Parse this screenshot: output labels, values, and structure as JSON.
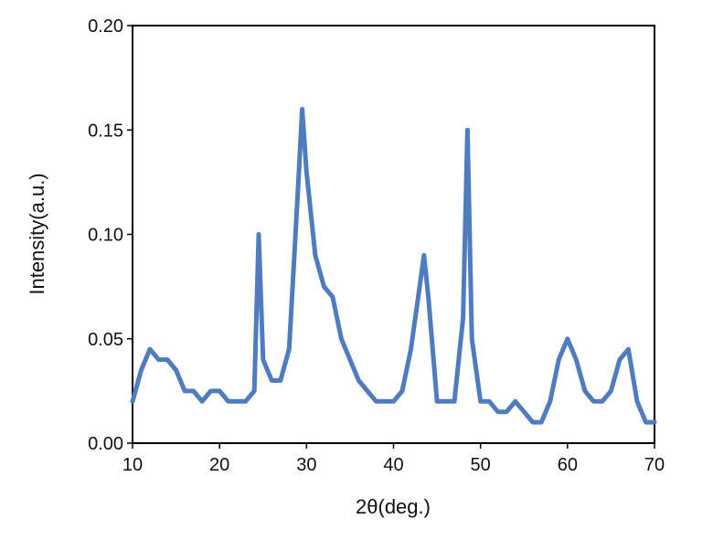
{
  "chart_data": {
    "type": "line",
    "title": "",
    "xlabel": "2θ(deg.)",
    "ylabel": "Intensity(a.u.)",
    "xlim": [
      10,
      70
    ],
    "ylim": [
      0,
      0.2
    ],
    "x_ticks": [
      "10",
      "20",
      "30",
      "40",
      "50",
      "60",
      "70"
    ],
    "y_ticks": [
      "0.00",
      "0.05",
      "0.10",
      "0.15",
      "0.20"
    ],
    "grid": false,
    "legend": "none",
    "line_color": "#4f7bbf",
    "series": [
      {
        "x": [
          10,
          11,
          12,
          13,
          14,
          15,
          16,
          17,
          18,
          19,
          20,
          21,
          22,
          23,
          24,
          24.5,
          25,
          25.5,
          26,
          27,
          28,
          29,
          29.5,
          30,
          31,
          32,
          33,
          34,
          35,
          36,
          37,
          38,
          39,
          40,
          41,
          42,
          43,
          43.5,
          44,
          45,
          46,
          47,
          48,
          48.5,
          49,
          50,
          51,
          52,
          53,
          54,
          55,
          56,
          57,
          58,
          59,
          60,
          61,
          62,
          63,
          64,
          65,
          66,
          67,
          68,
          69,
          70
        ],
        "y": [
          0.02,
          0.035,
          0.045,
          0.04,
          0.04,
          0.035,
          0.025,
          0.025,
          0.02,
          0.025,
          0.025,
          0.02,
          0.02,
          0.02,
          0.025,
          0.1,
          0.04,
          0.035,
          0.03,
          0.03,
          0.045,
          0.12,
          0.16,
          0.13,
          0.09,
          0.075,
          0.07,
          0.05,
          0.04,
          0.03,
          0.025,
          0.02,
          0.02,
          0.02,
          0.025,
          0.045,
          0.075,
          0.09,
          0.07,
          0.02,
          0.02,
          0.02,
          0.06,
          0.15,
          0.05,
          0.02,
          0.02,
          0.015,
          0.015,
          0.02,
          0.015,
          0.01,
          0.01,
          0.02,
          0.04,
          0.05,
          0.04,
          0.025,
          0.02,
          0.02,
          0.025,
          0.04,
          0.045,
          0.02,
          0.01,
          0.01
        ]
      }
    ]
  }
}
